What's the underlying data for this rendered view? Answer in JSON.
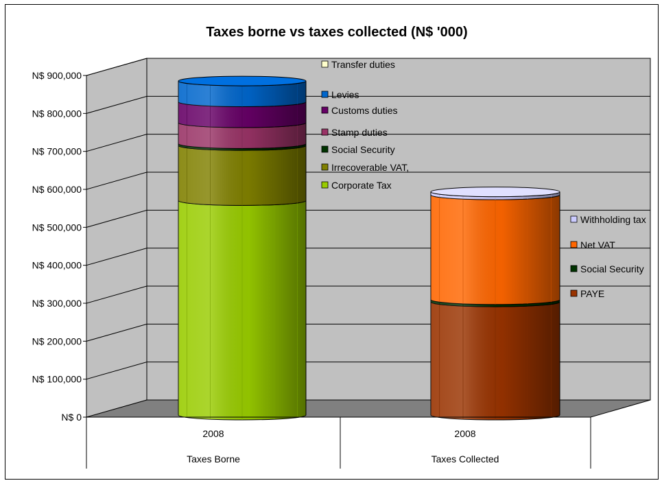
{
  "chart_data": {
    "type": "bar",
    "stacked": true,
    "style": "3d-cylinder",
    "title": "Taxes borne vs taxes collected  (N$ '000)",
    "y_ticks": [
      "N$ 0",
      "N$ 100,000",
      "N$ 200,000",
      "N$ 300,000",
      "N$ 400,000",
      "N$ 500,000",
      "N$ 600,000",
      "N$ 700,000",
      "N$ 800,000",
      "N$ 900,000"
    ],
    "ylim": [
      0,
      900000
    ],
    "grid": true,
    "categories": [
      {
        "year": "2008",
        "group": "Taxes Borne"
      },
      {
        "year": "2008",
        "group": "Taxes Collected"
      }
    ],
    "bars": [
      {
        "category_index": 0,
        "legend_position": "above-right of bar",
        "series": [
          {
            "name": "Corporate Tax",
            "value": 565000,
            "color": "#99cc00"
          },
          {
            "name": "Irrecoverable VAT,",
            "value": 145000,
            "color": "#808000"
          },
          {
            "name": "Social Security",
            "value": 5000,
            "color": "#003300"
          },
          {
            "name": "Stamp duties",
            "value": 55000,
            "color": "#993366"
          },
          {
            "name": "Customs duties",
            "value": 55000,
            "color": "#660066"
          },
          {
            "name": "Levies",
            "value": 55000,
            "color": "#0066cc"
          },
          {
            "name": "Transfer duties",
            "value": 0,
            "color": "#ffffcc"
          }
        ]
      },
      {
        "category_index": 1,
        "legend_position": "right of bar",
        "series": [
          {
            "name": "PAYE",
            "value": 298000,
            "color": "#993300"
          },
          {
            "name": "Social Security",
            "value": 6000,
            "color": "#003300"
          },
          {
            "name": "Net VAT",
            "value": 276000,
            "color": "#ff6600"
          },
          {
            "name": "Withholding tax",
            "value": 8000,
            "color": "#ccccff"
          }
        ]
      }
    ]
  }
}
